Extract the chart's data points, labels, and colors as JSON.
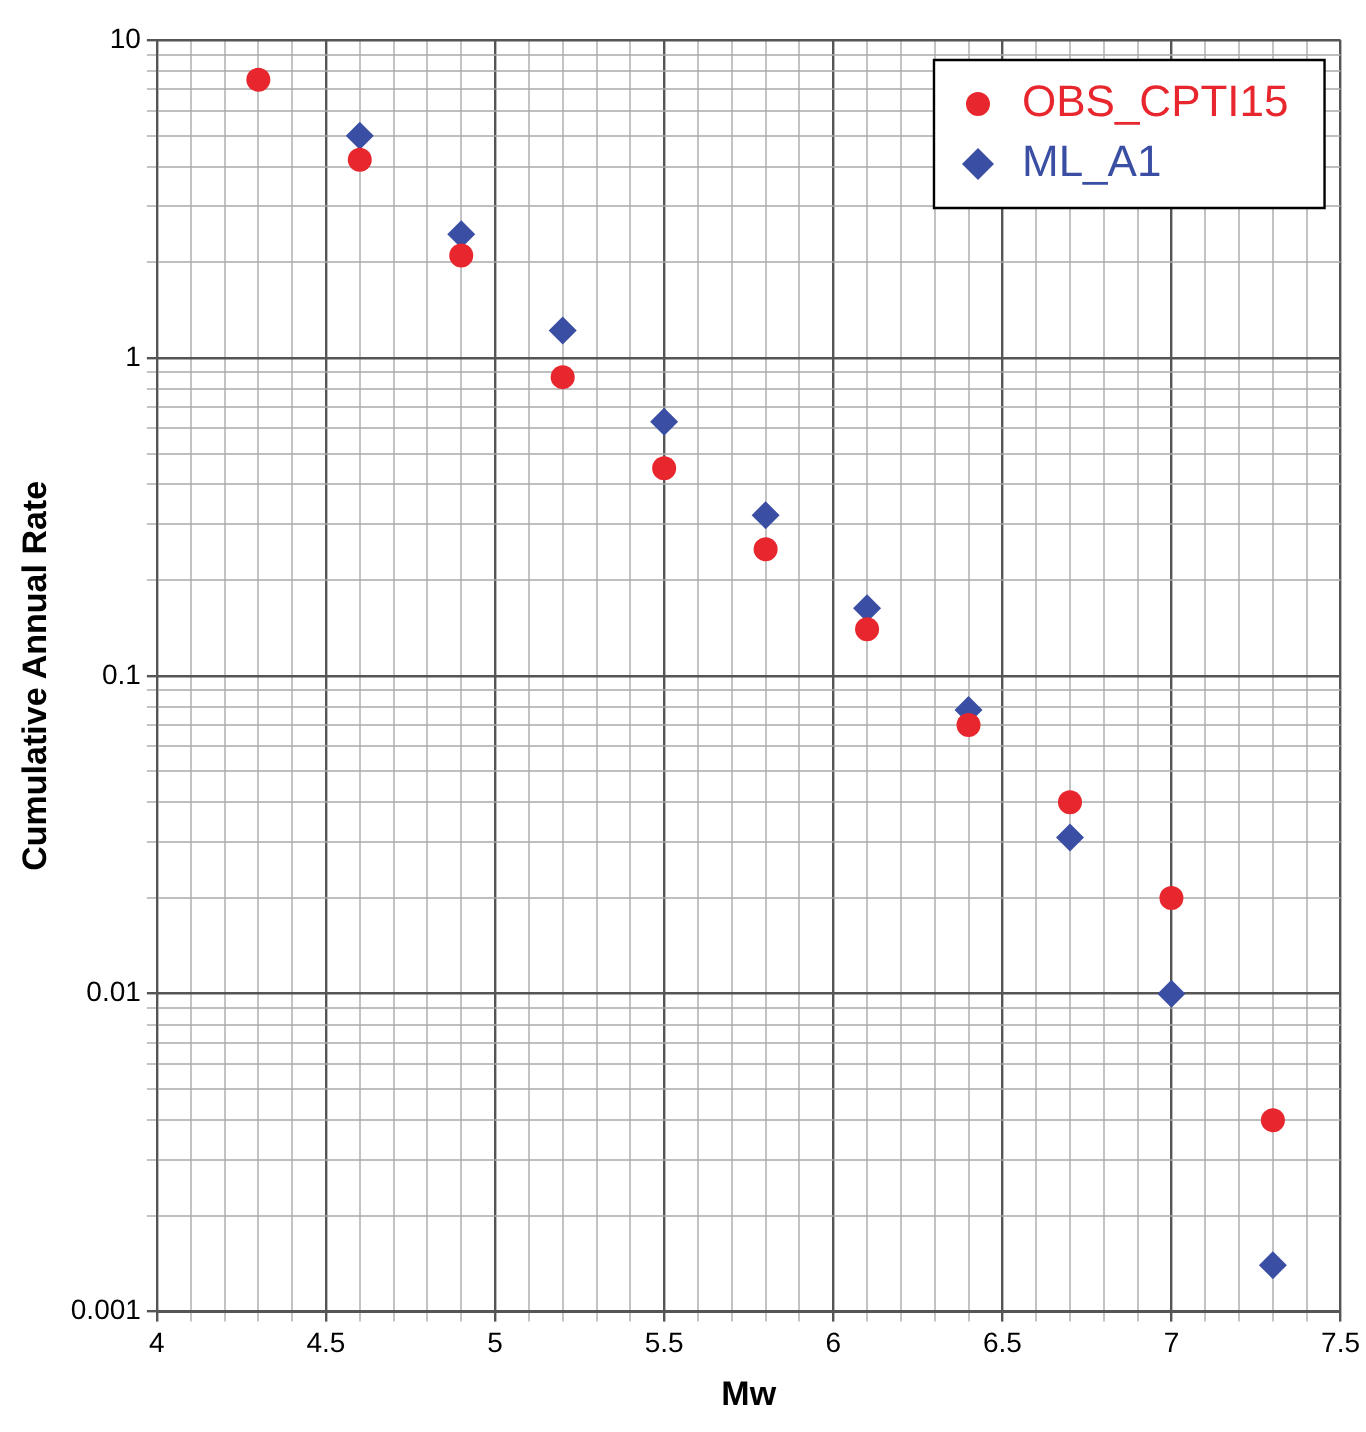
{
  "chart_data": {
    "type": "scatter",
    "xlabel": "Mw",
    "ylabel": "Cumulative Annual Rate",
    "log": "y",
    "grid": true,
    "legend": "top right",
    "xlim": [
      4,
      7.5
    ],
    "ylim": [
      0.001,
      10
    ],
    "xticks": [
      4,
      {
        "value": 4.1,
        "label": null
      },
      {
        "value": 4.2,
        "label": null
      },
      {
        "value": 4.3,
        "label": null
      },
      {
        "value": 4.4,
        "label": null
      },
      4.5,
      {
        "value": 4.6,
        "label": null
      },
      {
        "value": 4.7,
        "label": null
      },
      {
        "value": 4.8,
        "label": null
      },
      {
        "value": 4.9,
        "label": null
      },
      5,
      {
        "value": 5.1,
        "label": null
      },
      {
        "value": 5.2,
        "label": null
      },
      {
        "value": 5.3,
        "label": null
      },
      {
        "value": 5.4,
        "label": null
      },
      5.5,
      {
        "value": 5.6,
        "label": null
      },
      {
        "value": 5.7,
        "label": null
      },
      {
        "value": 5.8,
        "label": null
      },
      {
        "value": 5.9,
        "label": null
      },
      6,
      {
        "value": 6.1,
        "label": null
      },
      {
        "value": 6.2,
        "label": null
      },
      {
        "value": 6.3,
        "label": null
      },
      {
        "value": 6.4,
        "label": null
      },
      6.5,
      {
        "value": 6.6,
        "label": null
      },
      {
        "value": 6.7,
        "label": null
      },
      {
        "value": 6.8,
        "label": null
      },
      {
        "value": 6.9,
        "label": null
      },
      7,
      {
        "value": 7.1,
        "label": null
      },
      {
        "value": 7.2,
        "label": null
      },
      {
        "value": 7.3,
        "label": null
      },
      {
        "value": 7.4,
        "label": null
      },
      7.5
    ],
    "yticks": [
      0.001,
      {
        "value": 0.002,
        "label": null
      },
      {
        "value": 0.003,
        "label": null
      },
      {
        "value": 0.004,
        "label": null
      },
      {
        "value": 0.005,
        "label": null
      },
      {
        "value": 0.006,
        "label": null
      },
      {
        "value": 0.007,
        "label": null
      },
      {
        "value": 0.008,
        "label": null
      },
      {
        "value": 0.009,
        "label": null
      },
      0.01,
      {
        "value": 0.02,
        "label": null
      },
      {
        "value": 0.03,
        "label": null
      },
      {
        "value": 0.04,
        "label": null
      },
      {
        "value": 0.05,
        "label": null
      },
      {
        "value": 0.06,
        "label": null
      },
      {
        "value": 0.07,
        "label": null
      },
      {
        "value": 0.08,
        "label": null
      },
      {
        "value": 0.09,
        "label": null
      },
      0.1,
      {
        "value": 0.2,
        "label": null
      },
      {
        "value": 0.3,
        "label": null
      },
      {
        "value": 0.4,
        "label": null
      },
      {
        "value": 0.5,
        "label": null
      },
      {
        "value": 0.6,
        "label": null
      },
      {
        "value": 0.7,
        "label": null
      },
      {
        "value": 0.8,
        "label": null
      },
      {
        "value": 0.9,
        "label": null
      },
      1,
      {
        "value": 2,
        "label": null
      },
      {
        "value": 3,
        "label": null
      },
      {
        "value": 4,
        "label": null
      },
      {
        "value": 5,
        "label": null
      },
      {
        "value": 6,
        "label": null
      },
      {
        "value": 7,
        "label": null
      },
      {
        "value": 8,
        "label": null
      },
      {
        "value": 9,
        "label": null
      },
      10
    ],
    "series": [
      {
        "name": "OBS_CPTI15",
        "color": "#e8262e",
        "marker": "circle",
        "x": [
          4.3,
          4.6,
          4.9,
          5.2,
          5.5,
          5.8,
          6.1,
          6.4,
          6.7,
          7.0,
          7.3
        ],
        "values": [
          7.5,
          4.2,
          2.1,
          0.87,
          0.45,
          0.25,
          0.14,
          0.07,
          0.04,
          0.02,
          0.004
        ]
      },
      {
        "name": "ML_A1",
        "color": "#3a4ea3",
        "marker": "diamond",
        "x": [
          4.6,
          4.9,
          5.2,
          5.5,
          5.8,
          6.1,
          6.4,
          6.7,
          7.0,
          7.3
        ],
        "values": [
          5.0,
          2.45,
          1.22,
          0.63,
          0.32,
          0.163,
          0.078,
          0.031,
          0.01,
          0.0014
        ]
      }
    ]
  }
}
